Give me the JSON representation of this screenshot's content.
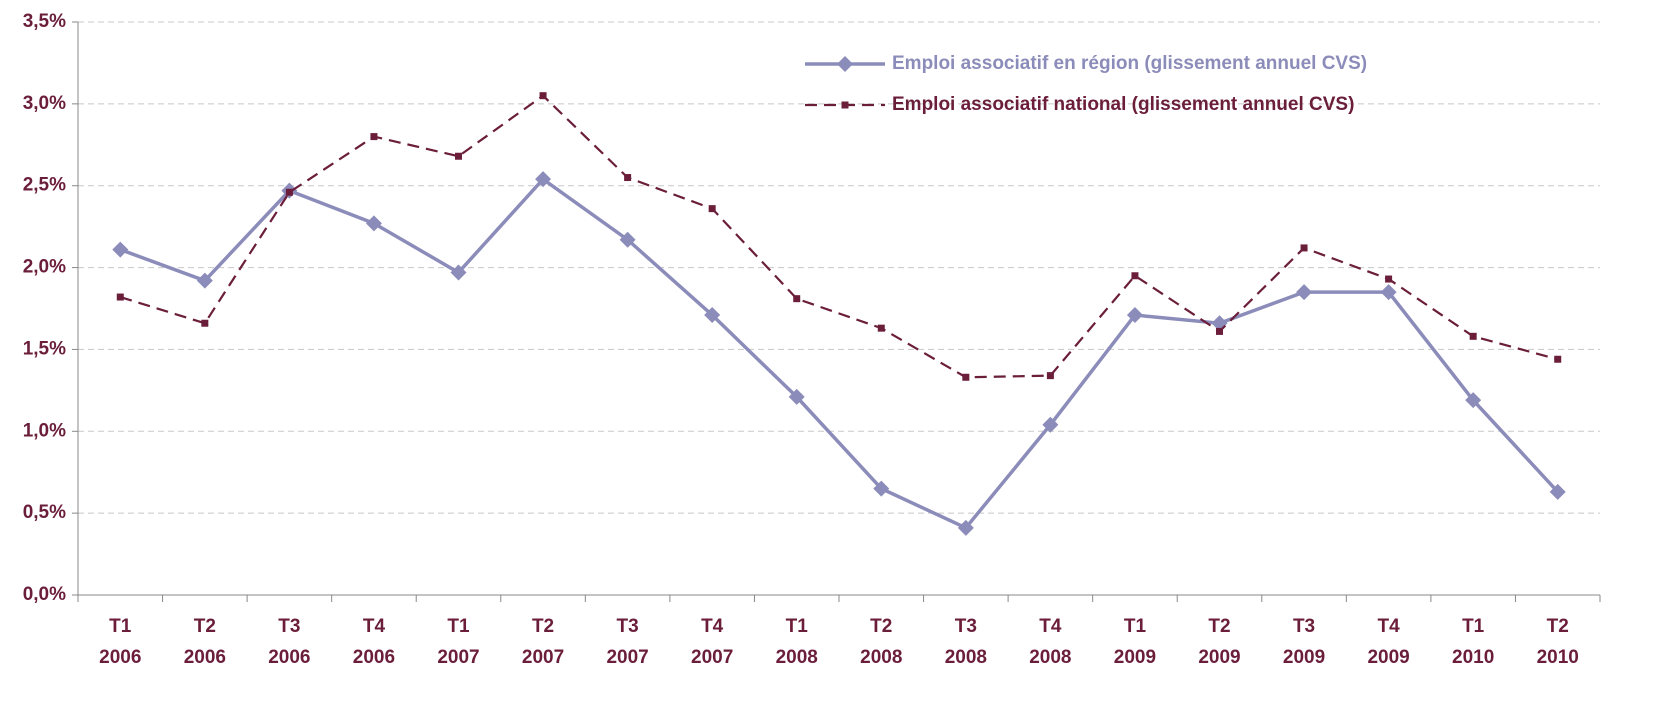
{
  "chart_data": {
    "type": "line",
    "categories": [
      "T1 2006",
      "T2 2006",
      "T3 2006",
      "T4 2006",
      "T1 2007",
      "T2 2007",
      "T3 2007",
      "T4 2007",
      "T1 2008",
      "T2 2008",
      "T3 2008",
      "T4 2008",
      "T1 2009",
      "T2 2009",
      "T3 2009",
      "T4 2009",
      "T1 2010",
      "T2 2010"
    ],
    "series": [
      {
        "name": "Emploi associatif en région (glissement annuel CVS)",
        "color": "#8c8cba",
        "dash": false,
        "marker": "diamond",
        "values": [
          2.11,
          1.92,
          2.47,
          2.27,
          1.97,
          2.54,
          2.17,
          1.71,
          1.21,
          0.65,
          0.41,
          1.04,
          1.71,
          1.66,
          1.85,
          1.85,
          1.19,
          0.63
        ]
      },
      {
        "name": "Emploi associatif national (glissement annuel CVS)",
        "color": "#6b1e3a",
        "dash": true,
        "marker": "square",
        "values": [
          1.82,
          1.66,
          2.46,
          2.8,
          2.68,
          3.05,
          2.55,
          2.36,
          1.81,
          1.63,
          1.33,
          1.34,
          1.95,
          1.61,
          2.12,
          1.93,
          1.58,
          1.44
        ]
      }
    ],
    "ylim": [
      0,
      3.5
    ],
    "yticks": [
      {
        "value": 0,
        "label": "0,0%"
      },
      {
        "value": 0.5,
        "label": "0,5%"
      },
      {
        "value": 1,
        "label": "1,0%"
      },
      {
        "value": 1.5,
        "label": "1,5%"
      },
      {
        "value": 2,
        "label": "2,0%"
      },
      {
        "value": 2.5,
        "label": "2,5%"
      },
      {
        "value": 3,
        "label": "3,0%"
      },
      {
        "value": 3.5,
        "label": "3,5%"
      }
    ],
    "grid": true,
    "legend": "top-right"
  }
}
